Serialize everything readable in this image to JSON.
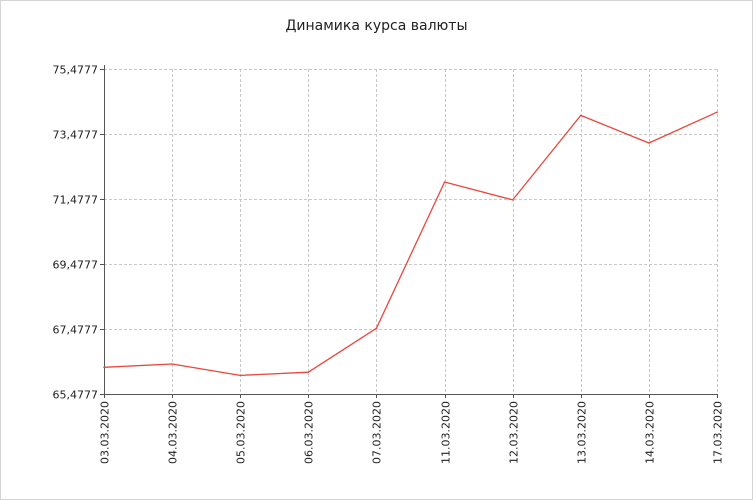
{
  "chart_data": {
    "type": "line",
    "title": "Динамика курса валюты",
    "xlabel": "",
    "ylabel": "",
    "x": [
      "03.03.2020",
      "04.03.2020",
      "05.03.2020",
      "06.03.2020",
      "07.03.2020",
      "11.03.2020",
      "12.03.2020",
      "13.03.2020",
      "14.03.2020",
      "17.03.2020"
    ],
    "y": [
      66.3,
      66.4,
      66.05,
      66.15,
      67.5,
      72.0,
      71.45,
      74.05,
      73.2,
      74.15
    ],
    "ylim": [
      65.4777,
      75.4777
    ],
    "yticks": [
      "65,4777",
      "67,4777",
      "69,4777",
      "71,4777",
      "73,4777",
      "75,4777"
    ],
    "grid": true,
    "line_color": "#e8473d",
    "grid_color": "#c8c8c8"
  }
}
